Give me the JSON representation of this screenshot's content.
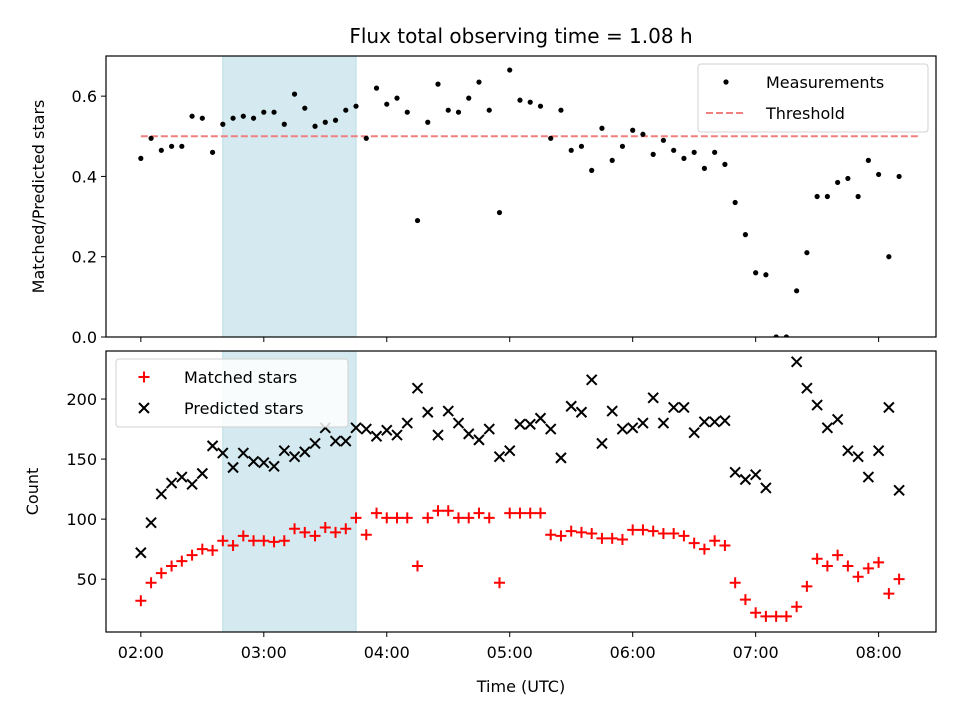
{
  "chart_data": {
    "type": "scatter",
    "title": "Flux total observing time = 1.08 h",
    "shaded_band": {
      "x_start": "02:40",
      "x_end": "03:45",
      "color": "#d4eaf0"
    },
    "x_axis": {
      "label": "Time (UTC)",
      "range": [
        "01:43",
        "08:28"
      ],
      "ticks": [
        "02:00",
        "03:00",
        "04:00",
        "05:00",
        "06:00",
        "07:00",
        "08:00"
      ]
    },
    "panels": [
      {
        "ylabel": "Matched/Predicted stars",
        "ylim": [
          0,
          0.7
        ],
        "yticks": [
          0.0,
          0.2,
          0.4,
          0.6
        ],
        "ytick_labels": [
          "0.0",
          "0.2",
          "0.4",
          "0.6"
        ],
        "legend_position": "top-right",
        "threshold": {
          "name": "Threshold",
          "value": 0.5,
          "x_start": "02:00",
          "x_end": "08:20",
          "color": "#f08080"
        },
        "series": [
          {
            "name": "Measurements",
            "marker": "dot",
            "color": "#000000",
            "points": [
              [
                "02:00",
                0.445
              ],
              [
                "02:05",
                0.495
              ],
              [
                "02:10",
                0.465
              ],
              [
                "02:15",
                0.475
              ],
              [
                "02:20",
                0.475
              ],
              [
                "02:25",
                0.55
              ],
              [
                "02:30",
                0.545
              ],
              [
                "02:35",
                0.46
              ],
              [
                "02:40",
                0.53
              ],
              [
                "02:45",
                0.545
              ],
              [
                "02:50",
                0.55
              ],
              [
                "02:55",
                0.545
              ],
              [
                "03:00",
                0.56
              ],
              [
                "03:05",
                0.56
              ],
              [
                "03:10",
                0.53
              ],
              [
                "03:15",
                0.605
              ],
              [
                "03:20",
                0.57
              ],
              [
                "03:25",
                0.525
              ],
              [
                "03:30",
                0.535
              ],
              [
                "03:35",
                0.54
              ],
              [
                "03:40",
                0.565
              ],
              [
                "03:45",
                0.575
              ],
              [
                "03:50",
                0.495
              ],
              [
                "03:55",
                0.62
              ],
              [
                "04:00",
                0.58
              ],
              [
                "04:05",
                0.595
              ],
              [
                "04:10",
                0.56
              ],
              [
                "04:15",
                0.29
              ],
              [
                "04:20",
                0.535
              ],
              [
                "04:25",
                0.63
              ],
              [
                "04:30",
                0.565
              ],
              [
                "04:35",
                0.56
              ],
              [
                "04:40",
                0.595
              ],
              [
                "04:45",
                0.635
              ],
              [
                "04:50",
                0.565
              ],
              [
                "04:55",
                0.31
              ],
              [
                "05:00",
                0.665
              ],
              [
                "05:05",
                0.59
              ],
              [
                "05:10",
                0.585
              ],
              [
                "05:15",
                0.575
              ],
              [
                "05:20",
                0.495
              ],
              [
                "05:25",
                0.565
              ],
              [
                "05:30",
                0.465
              ],
              [
                "05:35",
                0.475
              ],
              [
                "05:40",
                0.415
              ],
              [
                "05:45",
                0.52
              ],
              [
                "05:50",
                0.44
              ],
              [
                "05:55",
                0.475
              ],
              [
                "06:00",
                0.515
              ],
              [
                "06:05",
                0.505
              ],
              [
                "06:10",
                0.455
              ],
              [
                "06:15",
                0.49
              ],
              [
                "06:20",
                0.465
              ],
              [
                "06:25",
                0.445
              ],
              [
                "06:30",
                0.46
              ],
              [
                "06:35",
                0.42
              ],
              [
                "06:40",
                0.46
              ],
              [
                "06:45",
                0.43
              ],
              [
                "06:50",
                0.335
              ],
              [
                "06:55",
                0.255
              ],
              [
                "07:00",
                0.16
              ],
              [
                "07:05",
                0.155
              ],
              [
                "07:10",
                0.0
              ],
              [
                "07:15",
                0.0
              ],
              [
                "07:20",
                0.115
              ],
              [
                "07:25",
                0.21
              ],
              [
                "07:30",
                0.35
              ],
              [
                "07:35",
                0.35
              ],
              [
                "07:40",
                0.385
              ],
              [
                "07:45",
                0.395
              ],
              [
                "07:50",
                0.35
              ],
              [
                "07:55",
                0.44
              ],
              [
                "08:00",
                0.405
              ],
              [
                "08:05",
                0.2
              ],
              [
                "08:10",
                0.4
              ]
            ]
          }
        ]
      },
      {
        "ylabel": "Count",
        "ylim": [
          6,
          240
        ],
        "yticks": [
          50,
          100,
          150,
          200
        ],
        "ytick_labels": [
          "50",
          "100",
          "150",
          "200"
        ],
        "legend_position": "top-left",
        "series": [
          {
            "name": "Matched stars",
            "marker": "plus",
            "color": "#ff0000",
            "points": [
              [
                "02:00",
                32
              ],
              [
                "02:05",
                47
              ],
              [
                "02:10",
                55
              ],
              [
                "02:15",
                61
              ],
              [
                "02:20",
                65
              ],
              [
                "02:25",
                70
              ],
              [
                "02:30",
                75
              ],
              [
                "02:35",
                74
              ],
              [
                "02:40",
                82
              ],
              [
                "02:45",
                78
              ],
              [
                "02:50",
                86
              ],
              [
                "02:55",
                82
              ],
              [
                "03:00",
                82
              ],
              [
                "03:05",
                81
              ],
              [
                "03:10",
                82
              ],
              [
                "03:15",
                92
              ],
              [
                "03:20",
                89
              ],
              [
                "03:25",
                86
              ],
              [
                "03:30",
                93
              ],
              [
                "03:35",
                89
              ],
              [
                "03:40",
                92
              ],
              [
                "03:45",
                101
              ],
              [
                "03:50",
                87
              ],
              [
                "03:55",
                105
              ],
              [
                "04:00",
                101
              ],
              [
                "04:05",
                101
              ],
              [
                "04:10",
                101
              ],
              [
                "04:15",
                61
              ],
              [
                "04:20",
                101
              ],
              [
                "04:25",
                107
              ],
              [
                "04:30",
                107
              ],
              [
                "04:35",
                101
              ],
              [
                "04:40",
                101
              ],
              [
                "04:45",
                105
              ],
              [
                "04:50",
                101
              ],
              [
                "04:55",
                47
              ],
              [
                "05:00",
                105
              ],
              [
                "05:05",
                105
              ],
              [
                "05:10",
                105
              ],
              [
                "05:15",
                105
              ],
              [
                "05:20",
                87
              ],
              [
                "05:25",
                86
              ],
              [
                "05:30",
                90
              ],
              [
                "05:35",
                89
              ],
              [
                "05:40",
                88
              ],
              [
                "05:45",
                84
              ],
              [
                "05:50",
                84
              ],
              [
                "05:55",
                83
              ],
              [
                "06:00",
                91
              ],
              [
                "06:05",
                91
              ],
              [
                "06:10",
                90
              ],
              [
                "06:15",
                88
              ],
              [
                "06:20",
                88
              ],
              [
                "06:25",
                86
              ],
              [
                "06:30",
                80
              ],
              [
                "06:35",
                75
              ],
              [
                "06:40",
                82
              ],
              [
                "06:45",
                78
              ],
              [
                "06:50",
                47
              ],
              [
                "06:55",
                33
              ],
              [
                "07:00",
                22
              ],
              [
                "07:05",
                19
              ],
              [
                "07:10",
                19
              ],
              [
                "07:15",
                19
              ],
              [
                "07:20",
                27
              ],
              [
                "07:25",
                44
              ],
              [
                "07:30",
                67
              ],
              [
                "07:35",
                61
              ],
              [
                "07:40",
                70
              ],
              [
                "07:45",
                61
              ],
              [
                "07:50",
                52
              ],
              [
                "07:55",
                59
              ],
              [
                "08:00",
                64
              ],
              [
                "08:05",
                38
              ],
              [
                "08:10",
                50
              ]
            ]
          },
          {
            "name": "Predicted stars",
            "marker": "x",
            "color": "#000000",
            "points": [
              [
                "02:00",
                72
              ],
              [
                "02:05",
                97
              ],
              [
                "02:10",
                121
              ],
              [
                "02:15",
                130
              ],
              [
                "02:20",
                135
              ],
              [
                "02:25",
                129
              ],
              [
                "02:30",
                138
              ],
              [
                "02:35",
                161
              ],
              [
                "02:40",
                155
              ],
              [
                "02:45",
                143
              ],
              [
                "02:50",
                155
              ],
              [
                "02:55",
                148
              ],
              [
                "03:00",
                147
              ],
              [
                "03:05",
                144
              ],
              [
                "03:10",
                157
              ],
              [
                "03:15",
                152
              ],
              [
                "03:20",
                156
              ],
              [
                "03:25",
                163
              ],
              [
                "03:30",
                176
              ],
              [
                "03:35",
                165
              ],
              [
                "03:40",
                165
              ],
              [
                "03:45",
                176
              ],
              [
                "03:50",
                175
              ],
              [
                "03:55",
                169
              ],
              [
                "04:00",
                174
              ],
              [
                "04:05",
                170
              ],
              [
                "04:10",
                180
              ],
              [
                "04:15",
                209
              ],
              [
                "04:20",
                189
              ],
              [
                "04:25",
                170
              ],
              [
                "04:30",
                190
              ],
              [
                "04:35",
                180
              ],
              [
                "04:40",
                171
              ],
              [
                "04:45",
                166
              ],
              [
                "04:50",
                175
              ],
              [
                "04:55",
                152
              ],
              [
                "05:00",
                157
              ],
              [
                "05:05",
                179
              ],
              [
                "05:10",
                179
              ],
              [
                "05:15",
                184
              ],
              [
                "05:20",
                175
              ],
              [
                "05:25",
                151
              ],
              [
                "05:30",
                194
              ],
              [
                "05:35",
                189
              ],
              [
                "05:40",
                216
              ],
              [
                "05:45",
                163
              ],
              [
                "05:50",
                190
              ],
              [
                "05:55",
                175
              ],
              [
                "06:00",
                176
              ],
              [
                "06:05",
                180
              ],
              [
                "06:10",
                201
              ],
              [
                "06:15",
                180
              ],
              [
                "06:20",
                193
              ],
              [
                "06:25",
                193
              ],
              [
                "06:30",
                172
              ],
              [
                "06:35",
                181
              ],
              [
                "06:40",
                181
              ],
              [
                "06:45",
                182
              ],
              [
                "06:50",
                139
              ],
              [
                "06:55",
                133
              ],
              [
                "07:00",
                137
              ],
              [
                "07:05",
                126
              ],
              [
                "07:20",
                231
              ],
              [
                "07:25",
                209
              ],
              [
                "07:30",
                195
              ],
              [
                "07:35",
                176
              ],
              [
                "07:40",
                183
              ],
              [
                "07:45",
                157
              ],
              [
                "07:50",
                152
              ],
              [
                "07:55",
                135
              ],
              [
                "08:00",
                157
              ],
              [
                "08:05",
                193
              ],
              [
                "08:10",
                124
              ]
            ]
          }
        ]
      }
    ]
  }
}
